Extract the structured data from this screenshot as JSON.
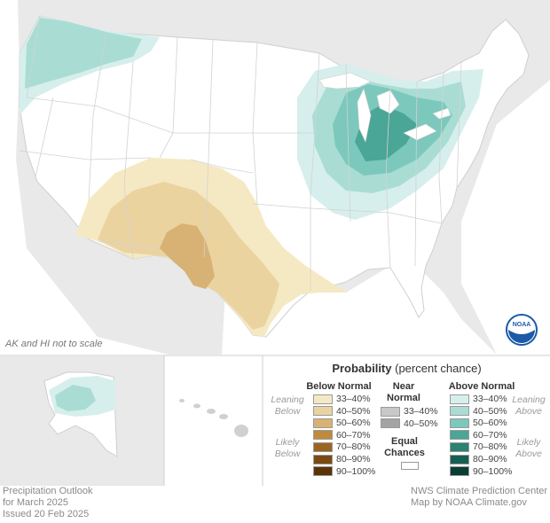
{
  "map": {
    "note": "AK and HI not to scale"
  },
  "legend": {
    "title": "Probability",
    "subtitle": "(percent chance)",
    "below_header": "Below Normal",
    "near_header_1": "Near",
    "near_header_2": "Normal",
    "above_header": "Above Normal",
    "leaning_below_1": "Leaning",
    "leaning_below_2": "Below",
    "likely_below_1": "Likely",
    "likely_below_2": "Below",
    "leaning_above_1": "Leaning",
    "leaning_above_2": "Above",
    "likely_above_1": "Likely",
    "likely_above_2": "Above",
    "equal_1": "Equal",
    "equal_2": "Chances",
    "below": [
      {
        "label": "33–40%",
        "color": "#f5e9c4"
      },
      {
        "label": "40–50%",
        "color": "#ebd3a0"
      },
      {
        "label": "50–60%",
        "color": "#d8b274"
      },
      {
        "label": "60–70%",
        "color": "#c08a3e"
      },
      {
        "label": "70–80%",
        "color": "#9a6520"
      },
      {
        "label": "80–90%",
        "color": "#7a4a12"
      },
      {
        "label": "90–100%",
        "color": "#5a3308"
      }
    ],
    "near": [
      {
        "label": "33–40%",
        "color": "#c8c8c8"
      },
      {
        "label": "40–50%",
        "color": "#a4a4a4"
      }
    ],
    "above": [
      {
        "label": "33–40%",
        "color": "#d6efec"
      },
      {
        "label": "40–50%",
        "color": "#a9ddd4"
      },
      {
        "label": "50–60%",
        "color": "#7cc8bc"
      },
      {
        "label": "60–70%",
        "color": "#4aa696"
      },
      {
        "label": "70–80%",
        "color": "#2a8272"
      },
      {
        "label": "80–90%",
        "color": "#175f52"
      },
      {
        "label": "90–100%",
        "color": "#0a3d33"
      }
    ],
    "equal_color": "#ffffff"
  },
  "footer": {
    "left_1": "Precipitation Outlook",
    "left_2": "for March 2025",
    "left_3": "Issued 20 Feb 2025",
    "right_1": "NWS Climate Prediction Center",
    "right_2": "Map by NOAA Climate.gov"
  },
  "logo": {
    "text": "NOAA",
    "color": "#1a5aa8"
  }
}
